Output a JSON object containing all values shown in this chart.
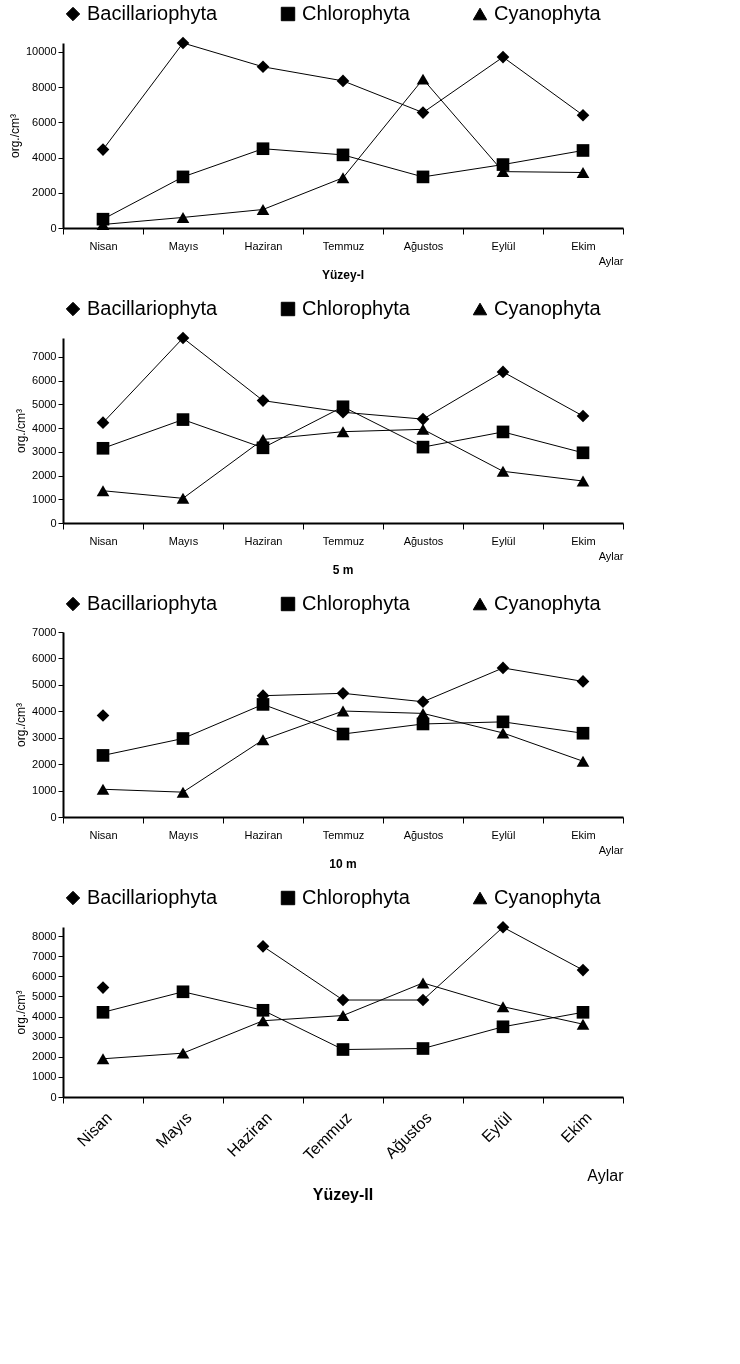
{
  "chart_data": [
    {
      "type": "line",
      "title": "Yüzey-I",
      "xlabel": "Aylar",
      "ylabel": "org./cm³",
      "categories": [
        "Nisan",
        "Mayıs",
        "Haziran",
        "Temmuz",
        "Ağustos",
        "Eylül",
        "Ekim"
      ],
      "ylim": [
        0,
        10500
      ],
      "yticks": [
        0,
        2000,
        4000,
        6000,
        8000,
        10000
      ],
      "legend": "top",
      "grid": false,
      "series": [
        {
          "name": "Bacillariophyta",
          "color": "#000000",
          "marker": "diamond",
          "values": [
            4450,
            10500,
            9150,
            8350,
            6550,
            9700,
            6400
          ]
        },
        {
          "name": "Chlorophyta",
          "color": "#000000",
          "marker": "square",
          "values": [
            500,
            2900,
            4500,
            4150,
            2900,
            3600,
            4400
          ]
        },
        {
          "name": "Cyanophyta",
          "color": "#000000",
          "marker": "triangle",
          "values": [
            200,
            600,
            1050,
            2850,
            8450,
            3200,
            3150
          ]
        }
      ]
    },
    {
      "type": "line",
      "title": "5 m",
      "xlabel": "Aylar",
      "ylabel": "org./cm³",
      "categories": [
        "Nisan",
        "Mayıs",
        "Haziran",
        "Temmuz",
        "Ağustos",
        "Eylül",
        "Ekim"
      ],
      "ylim": [
        0,
        7800
      ],
      "yticks": [
        0,
        1000,
        2000,
        3000,
        4000,
        5000,
        6000,
        7000
      ],
      "legend": "top",
      "grid": false,
      "series": [
        {
          "name": "Bacillariophyta",
          "color": "#000000",
          "marker": "diamond",
          "values": [
            4230,
            7800,
            5160,
            4670,
            4380,
            6370,
            4510
          ]
        },
        {
          "name": "Chlorophyta",
          "color": "#000000",
          "marker": "square",
          "values": [
            3150,
            4360,
            3170,
            4900,
            3200,
            3840,
            2960
          ]
        },
        {
          "name": "Cyanophyta",
          "color": "#000000",
          "marker": "triangle",
          "values": [
            1360,
            1040,
            3520,
            3850,
            3950,
            2180,
            1770
          ]
        }
      ]
    },
    {
      "type": "line",
      "title": "10 m",
      "xlabel": "Aylar",
      "ylabel": "org./cm³",
      "categories": [
        "Nisan",
        "Mayıs",
        "Haziran",
        "Temmuz",
        "Ağustos",
        "Eylül",
        "Ekim"
      ],
      "ylim": [
        0,
        7000
      ],
      "yticks": [
        0,
        1000,
        2000,
        3000,
        4000,
        5000,
        6000,
        7000
      ],
      "legend": "top",
      "grid": false,
      "series": [
        {
          "name": "Bacillariophyta",
          "color": "#000000",
          "marker": "diamond",
          "values": [
            3840,
            null,
            4590,
            4680,
            4360,
            5640,
            5130
          ]
        },
        {
          "name": "Chlorophyta",
          "color": "#000000",
          "marker": "square",
          "values": [
            2330,
            2970,
            4260,
            3140,
            3520,
            3600,
            3170
          ]
        },
        {
          "name": "Cyanophyta",
          "color": "#000000",
          "marker": "triangle",
          "values": [
            1050,
            940,
            2920,
            4010,
            3920,
            3180,
            2110
          ]
        }
      ]
    },
    {
      "type": "line",
      "title": "Yüzey-II",
      "xlabel": "Aylar",
      "ylabel": "org./cm³",
      "categories": [
        "Nisan",
        "Mayıs",
        "Haziran",
        "Temmuz",
        "Ağustos",
        "Eylül",
        "Ekim"
      ],
      "ylim": [
        0,
        8450
      ],
      "yticks": [
        0,
        1000,
        2000,
        3000,
        4000,
        5000,
        6000,
        7000,
        8000
      ],
      "legend": "top",
      "grid": false,
      "series": [
        {
          "name": "Bacillariophyta",
          "color": "#000000",
          "marker": "diamond",
          "values": [
            5440,
            null,
            7490,
            4820,
            4820,
            8440,
            6310
          ]
        },
        {
          "name": "Chlorophyta",
          "color": "#000000",
          "marker": "square",
          "values": [
            4210,
            5230,
            4310,
            2360,
            2410,
            3490,
            4210
          ]
        },
        {
          "name": "Cyanophyta",
          "color": "#000000",
          "marker": "triangle",
          "values": [
            1900,
            2180,
            3790,
            4050,
            5670,
            4490,
            3620
          ]
        }
      ]
    }
  ]
}
